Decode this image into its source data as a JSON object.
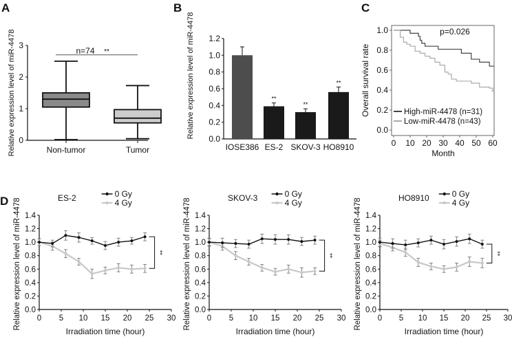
{
  "panels": {
    "A": "A",
    "B": "B",
    "C": "C",
    "D": "D"
  },
  "colors": {
    "axis": "#111111",
    "box_nontumor": "#8a8a8a",
    "box_tumor": "#cccccc",
    "bar_control": "#4d4d4d",
    "bar_cancer": "#1a1a1a",
    "km_high": "#444444",
    "km_low": "#aaaaaa",
    "gy0": "#111111",
    "gy4": "#c8c8c8"
  },
  "chart_data": [
    {
      "id": "A",
      "type": "box",
      "ylabel": "Relative expression level of miR-4478",
      "ylim": [
        0,
        3
      ],
      "yticks": [
        "0",
        "1",
        "2",
        "3"
      ],
      "categories": [
        "Non-tumor",
        "Tumor"
      ],
      "boxes": [
        {
          "min": 0.02,
          "q1": 1.05,
          "median": 1.3,
          "q3": 1.5,
          "max": 2.5
        },
        {
          "min": 0.05,
          "q1": 0.55,
          "median": 0.7,
          "q3": 0.97,
          "max": 1.73
        }
      ],
      "annotation": "n=74",
      "significance": "**"
    },
    {
      "id": "B",
      "type": "bar",
      "ylabel": "Relative expression level of miR-4478",
      "ylim": [
        0,
        1.2
      ],
      "yticks": [
        "0.0",
        "0.2",
        "0.4",
        "0.6",
        "0.8",
        "1.0",
        "1.2"
      ],
      "categories": [
        "IOSE386",
        "ES-2",
        "SKOV-3",
        "HO8910"
      ],
      "values": [
        1.0,
        0.39,
        0.32,
        0.56
      ],
      "errors": [
        0.1,
        0.04,
        0.04,
        0.06
      ],
      "significance": [
        "",
        "**",
        "**",
        "**"
      ]
    },
    {
      "id": "C",
      "type": "line",
      "subtype": "kaplan-meier",
      "xlabel": "Month",
      "ylabel": "Overall survival rate",
      "xlim": [
        0,
        60
      ],
      "ylim": [
        0,
        1
      ],
      "xticks": [
        "0",
        "10",
        "20",
        "30",
        "40",
        "50",
        "60"
      ],
      "yticks": [
        "0.0",
        "0.2",
        "0.4",
        "0.6",
        "0.8",
        "1.0"
      ],
      "annotation": "p=0.026",
      "legend_position": "bottom-left",
      "series": [
        {
          "name": "High-miR-4478 (n=31)",
          "x": [
            0,
            10,
            15,
            16,
            17,
            19,
            27,
            41,
            47,
            52,
            58,
            60
          ],
          "y": [
            1.0,
            0.97,
            0.94,
            0.9,
            0.87,
            0.84,
            0.81,
            0.77,
            0.71,
            0.68,
            0.64,
            0.64
          ]
        },
        {
          "name": "Low-miR-4478 (n=43)",
          "x": [
            0,
            4,
            6,
            8,
            10,
            13,
            16,
            19,
            22,
            25,
            28,
            31,
            33,
            35,
            38,
            47,
            52,
            58,
            60
          ],
          "y": [
            1.0,
            0.93,
            0.88,
            0.86,
            0.84,
            0.79,
            0.77,
            0.74,
            0.72,
            0.68,
            0.65,
            0.58,
            0.56,
            0.51,
            0.49,
            0.47,
            0.43,
            0.42,
            0.39
          ]
        }
      ]
    },
    {
      "id": "D1",
      "type": "line",
      "title": "ES-2",
      "xlabel": "Irradiation time (hour)",
      "ylabel": "Relative expression level of miR-4478",
      "xlim": [
        0,
        30
      ],
      "ylim": [
        0,
        1.4
      ],
      "xticks": [
        "0",
        "5",
        "10",
        "15",
        "20",
        "25",
        "30"
      ],
      "yticks": [
        "0.0",
        "0.2",
        "0.4",
        "0.6",
        "0.8",
        "1.0",
        "1.2",
        "1.4"
      ],
      "x": [
        0,
        3,
        6,
        9,
        12,
        15,
        18,
        21,
        24
      ],
      "significance": "**",
      "legend_position": "top-right",
      "series": [
        {
          "name": "0 Gy",
          "values": [
            1.0,
            0.98,
            1.1,
            1.07,
            1.02,
            0.95,
            1.0,
            1.02,
            1.08
          ],
          "errors": [
            0.05,
            0.05,
            0.07,
            0.07,
            0.05,
            0.06,
            0.06,
            0.05,
            0.06
          ]
        },
        {
          "name": "4 Gy",
          "values": [
            1.0,
            0.94,
            0.83,
            0.71,
            0.53,
            0.58,
            0.62,
            0.6,
            0.61
          ],
          "errors": [
            0.05,
            0.06,
            0.06,
            0.05,
            0.07,
            0.05,
            0.06,
            0.06,
            0.06
          ]
        }
      ]
    },
    {
      "id": "D2",
      "type": "line",
      "title": "SKOV-3",
      "xlabel": "Irradiation time (hour)",
      "ylabel": "Relative expression level of miR-4478",
      "xlim": [
        0,
        30
      ],
      "ylim": [
        0,
        1.4
      ],
      "xticks": [
        "0",
        "5",
        "10",
        "15",
        "20",
        "25",
        "30"
      ],
      "yticks": [
        "0.0",
        "0.2",
        "0.4",
        "0.6",
        "0.8",
        "1.0",
        "1.2",
        "1.4"
      ],
      "x": [
        0,
        3,
        6,
        9,
        12,
        15,
        18,
        21,
        24
      ],
      "significance": "**",
      "legend_position": "top-right",
      "series": [
        {
          "name": "0 Gy",
          "values": [
            1.0,
            0.99,
            0.98,
            0.97,
            1.05,
            1.04,
            1.04,
            1.01,
            1.03
          ],
          "errors": [
            0.06,
            0.07,
            0.06,
            0.06,
            0.07,
            0.07,
            0.07,
            0.06,
            0.06
          ]
        },
        {
          "name": "4 Gy",
          "values": [
            1.0,
            0.94,
            0.8,
            0.71,
            0.62,
            0.56,
            0.6,
            0.55,
            0.57
          ],
          "errors": [
            0.05,
            0.06,
            0.06,
            0.05,
            0.05,
            0.05,
            0.06,
            0.07,
            0.05
          ]
        }
      ]
    },
    {
      "id": "D3",
      "type": "line",
      "title": "HO8910",
      "xlabel": "Irradiation time (hour)",
      "ylabel": "Relative expression level of miR-4478",
      "xlim": [
        0,
        30
      ],
      "ylim": [
        0,
        1.4
      ],
      "xticks": [
        "0",
        "5",
        "10",
        "15",
        "20",
        "25",
        "30"
      ],
      "yticks": [
        "0.0",
        "0.2",
        "0.4",
        "0.6",
        "0.8",
        "1.0",
        "1.2",
        "1.4"
      ],
      "x": [
        0,
        3,
        6,
        9,
        12,
        15,
        18,
        21,
        24
      ],
      "significance": "**",
      "legend_position": "top-right",
      "series": [
        {
          "name": "0 Gy",
          "values": [
            1.0,
            0.98,
            0.96,
            0.99,
            1.03,
            0.97,
            1.01,
            1.05,
            0.97
          ],
          "errors": [
            0.06,
            0.07,
            0.07,
            0.06,
            0.06,
            0.07,
            0.07,
            0.07,
            0.06
          ]
        },
        {
          "name": "4 Gy",
          "values": [
            0.98,
            0.92,
            0.85,
            0.7,
            0.64,
            0.6,
            0.63,
            0.71,
            0.69
          ],
          "errors": [
            0.05,
            0.05,
            0.06,
            0.06,
            0.05,
            0.05,
            0.06,
            0.07,
            0.07
          ]
        }
      ]
    }
  ]
}
